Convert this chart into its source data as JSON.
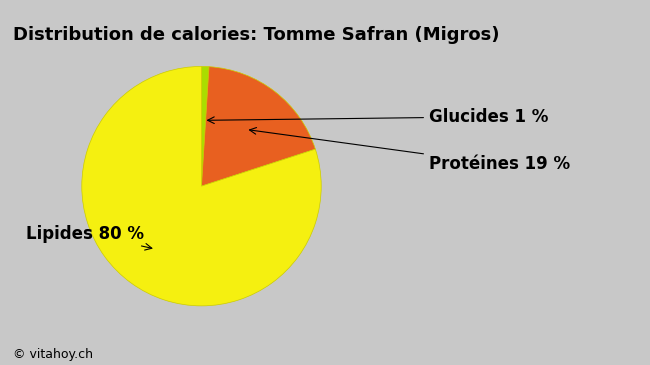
{
  "title": "Distribution de calories: Tomme Safran (Migros)",
  "slices": [
    1,
    19,
    80
  ],
  "labels": [
    "Glucides 1 %",
    "Protéines 19 %",
    "Lipides 80 %"
  ],
  "colors": [
    "#aadd00",
    "#e86020",
    "#f5f010"
  ],
  "startangle": 90,
  "background_color": "#c8c8c8",
  "title_fontsize": 13,
  "label_fontsize": 12,
  "watermark": "© vitahoy.ch"
}
